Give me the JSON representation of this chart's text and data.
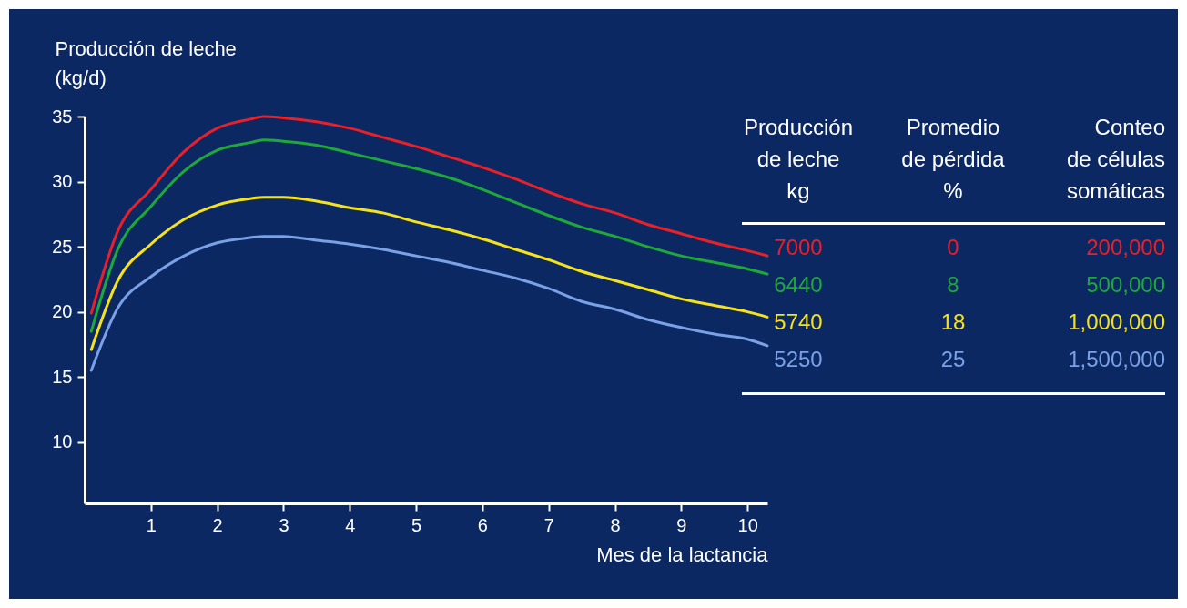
{
  "chart_data": {
    "type": "line",
    "ylabel": "Producción de leche\n(kg/d)",
    "xlabel": "Mes de la lactancia",
    "xlim": [
      0,
      10.3
    ],
    "xticks": [
      1,
      2,
      3,
      4,
      5,
      6,
      7,
      8,
      9,
      10
    ],
    "ylim": [
      5.3,
      35
    ],
    "yticks": [
      10,
      15,
      20,
      25,
      30,
      35
    ],
    "grid": false,
    "legend": "right",
    "line_style": "solid",
    "marker": "none",
    "x": [
      0.1,
      0.5,
      1,
      1.5,
      2,
      2.5,
      2.7,
      3,
      3.5,
      4,
      4.5,
      5,
      5.5,
      6,
      6.5,
      7,
      7.5,
      8,
      8.5,
      9,
      9.5,
      10,
      10.3
    ],
    "series": [
      {
        "name": "7000",
        "color": "#e8202a",
        "values": [
          19.9,
          26.2,
          29.4,
          32.3,
          34.1,
          34.8,
          35,
          34.9,
          34.6,
          34.1,
          33.4,
          32.7,
          31.9,
          31.1,
          30.2,
          29.2,
          28.3,
          27.6,
          26.7,
          26.0,
          25.3,
          24.7,
          24.3
        ]
      },
      {
        "name": "6440",
        "color": "#1fa83a",
        "values": [
          18.5,
          24.8,
          28.1,
          30.8,
          32.4,
          33.0,
          33.2,
          33.1,
          32.8,
          32.2,
          31.6,
          31.0,
          30.3,
          29.4,
          28.4,
          27.4,
          26.5,
          25.8,
          25.0,
          24.3,
          23.8,
          23.3,
          22.9
        ]
      },
      {
        "name": "5740",
        "color": "#f5e21b",
        "values": [
          17.1,
          22.4,
          25.2,
          27.1,
          28.2,
          28.7,
          28.8,
          28.8,
          28.5,
          28.0,
          27.6,
          26.9,
          26.3,
          25.6,
          24.8,
          24.0,
          23.1,
          22.4,
          21.7,
          21.0,
          20.5,
          20.0,
          19.6
        ]
      },
      {
        "name": "5250",
        "color": "#7aa0e6",
        "values": [
          15.5,
          20.3,
          22.7,
          24.3,
          25.3,
          25.7,
          25.8,
          25.8,
          25.5,
          25.2,
          24.8,
          24.3,
          23.8,
          23.2,
          22.6,
          21.8,
          20.8,
          20.2,
          19.4,
          18.8,
          18.3,
          17.9,
          17.4
        ]
      }
    ],
    "annotations": [
      "Producción\nde leche\nkg",
      "Promedio\nde pérdida\n%",
      "Conteo\nde células\nsomáticas",
      "0",
      "200,000",
      "8",
      "500,000",
      "18",
      "1,000,000",
      "25",
      "1,500,000"
    ]
  }
}
